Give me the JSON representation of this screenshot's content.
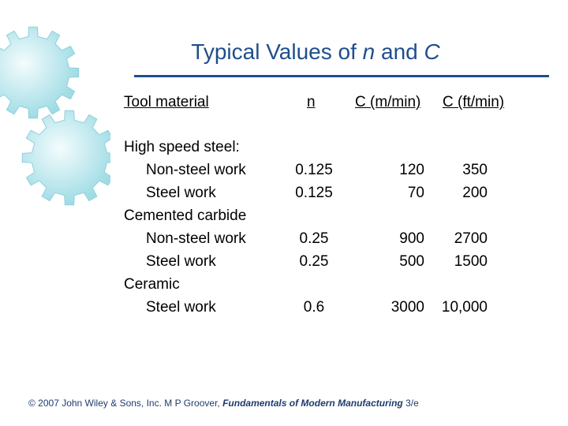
{
  "title": {
    "prefix": "Typical Values of ",
    "n": "n",
    "mid": " and ",
    "c": "C"
  },
  "table": {
    "headers": {
      "material": "Tool material",
      "n": "n",
      "c_m": "C (m/min)",
      "c_ft": "C (ft/min)"
    },
    "rows": [
      {
        "material": "High speed steel:",
        "n": "",
        "c_m": "",
        "c_ft": "",
        "indent": false
      },
      {
        "material": "Non-steel work",
        "n": "0.125",
        "c_m": "120",
        "c_ft": "350",
        "indent": true
      },
      {
        "material": "Steel work",
        "n": "0.125",
        "c_m": "70",
        "c_ft": "200",
        "indent": true
      },
      {
        "material": "Cemented carbide",
        "n": "",
        "c_m": "",
        "c_ft": "",
        "indent": false
      },
      {
        "material": "Non-steel work",
        "n": "0.25",
        "c_m": "900",
        "c_ft": "2700",
        "indent": true
      },
      {
        "material": "Steel work",
        "n": "0.25",
        "c_m": "500",
        "c_ft": "1500",
        "indent": true
      },
      {
        "material": "Ceramic",
        "n": "",
        "c_m": "",
        "c_ft": "",
        "indent": false
      },
      {
        "material": "Steel work",
        "n": "0.6",
        "c_m": "3000",
        "c_ft": "10,000",
        "indent": true
      }
    ]
  },
  "footer": {
    "pre": "© 2007 John Wiley & Sons, Inc. M P Groover, ",
    "book": "Fundamentals of Modern Manufacturing",
    "post": " 3/e"
  },
  "colors": {
    "title": "#1f4e8c",
    "gear": "#a6e0e8"
  }
}
